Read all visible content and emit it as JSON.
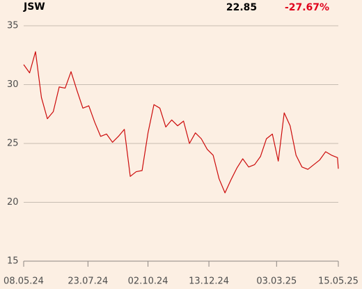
{
  "chart_data": {
    "type": "line",
    "last_price": "22.85",
    "change": "-27.67%",
    "change_color": "#e0001b",
    "x": [
      "08.05.24",
      "15.05.24",
      "22.05.24",
      "29.05.24",
      "05.06.24",
      "12.06.24",
      "19.06.24",
      "26.06.24",
      "03.07.24",
      "10.07.24",
      "17.07.24",
      "24.07.24",
      "31.07.24",
      "07.08.24",
      "14.08.24",
      "21.08.24",
      "28.08.24",
      "04.09.24",
      "11.09.24",
      "18.09.24",
      "25.09.24",
      "02.10.24",
      "09.10.24",
      "16.10.24",
      "23.10.24",
      "30.10.24",
      "06.11.24",
      "13.11.24",
      "20.11.24",
      "27.11.24",
      "04.12.24",
      "11.12.24",
      "18.12.24",
      "25.12.24",
      "01.01.25",
      "08.01.25",
      "15.01.25",
      "22.01.25",
      "29.01.25",
      "05.02.25",
      "12.02.25",
      "19.02.25",
      "26.02.25",
      "05.03.25",
      "12.03.25",
      "19.03.25",
      "26.03.25",
      "02.04.25",
      "09.04.25",
      "16.04.25",
      "23.04.25",
      "30.04.25",
      "07.05.25",
      "14.05.25",
      "15.05.25"
    ],
    "series": [
      {
        "name": "JSW",
        "color": "#cc0a0a",
        "values": [
          31.7,
          31.0,
          32.8,
          28.9,
          27.1,
          27.7,
          29.8,
          29.7,
          31.1,
          29.5,
          28.0,
          28.2,
          26.8,
          25.6,
          25.8,
          25.1,
          25.6,
          26.2,
          22.2,
          22.6,
          22.7,
          25.9,
          28.3,
          28.0,
          26.4,
          27.0,
          26.5,
          26.9,
          25.0,
          25.9,
          25.4,
          24.5,
          24.0,
          22.0,
          20.8,
          21.9,
          22.9,
          23.7,
          23.0,
          23.2,
          23.9,
          25.4,
          25.8,
          23.5,
          27.6,
          26.5,
          24.0,
          23.0,
          22.8,
          23.2,
          23.6,
          24.3,
          24.0,
          23.8,
          22.85
        ]
      }
    ],
    "xlim": [
      "08.05.24",
      "15.05.25"
    ],
    "xticks": [
      "08.05.24",
      "23.07.24",
      "02.10.24",
      "13.12.24",
      "03.03.25",
      "15.05.25"
    ],
    "ylim": [
      15,
      35
    ],
    "yticks": [
      15,
      20,
      25,
      30,
      35
    ],
    "grid": true
  }
}
